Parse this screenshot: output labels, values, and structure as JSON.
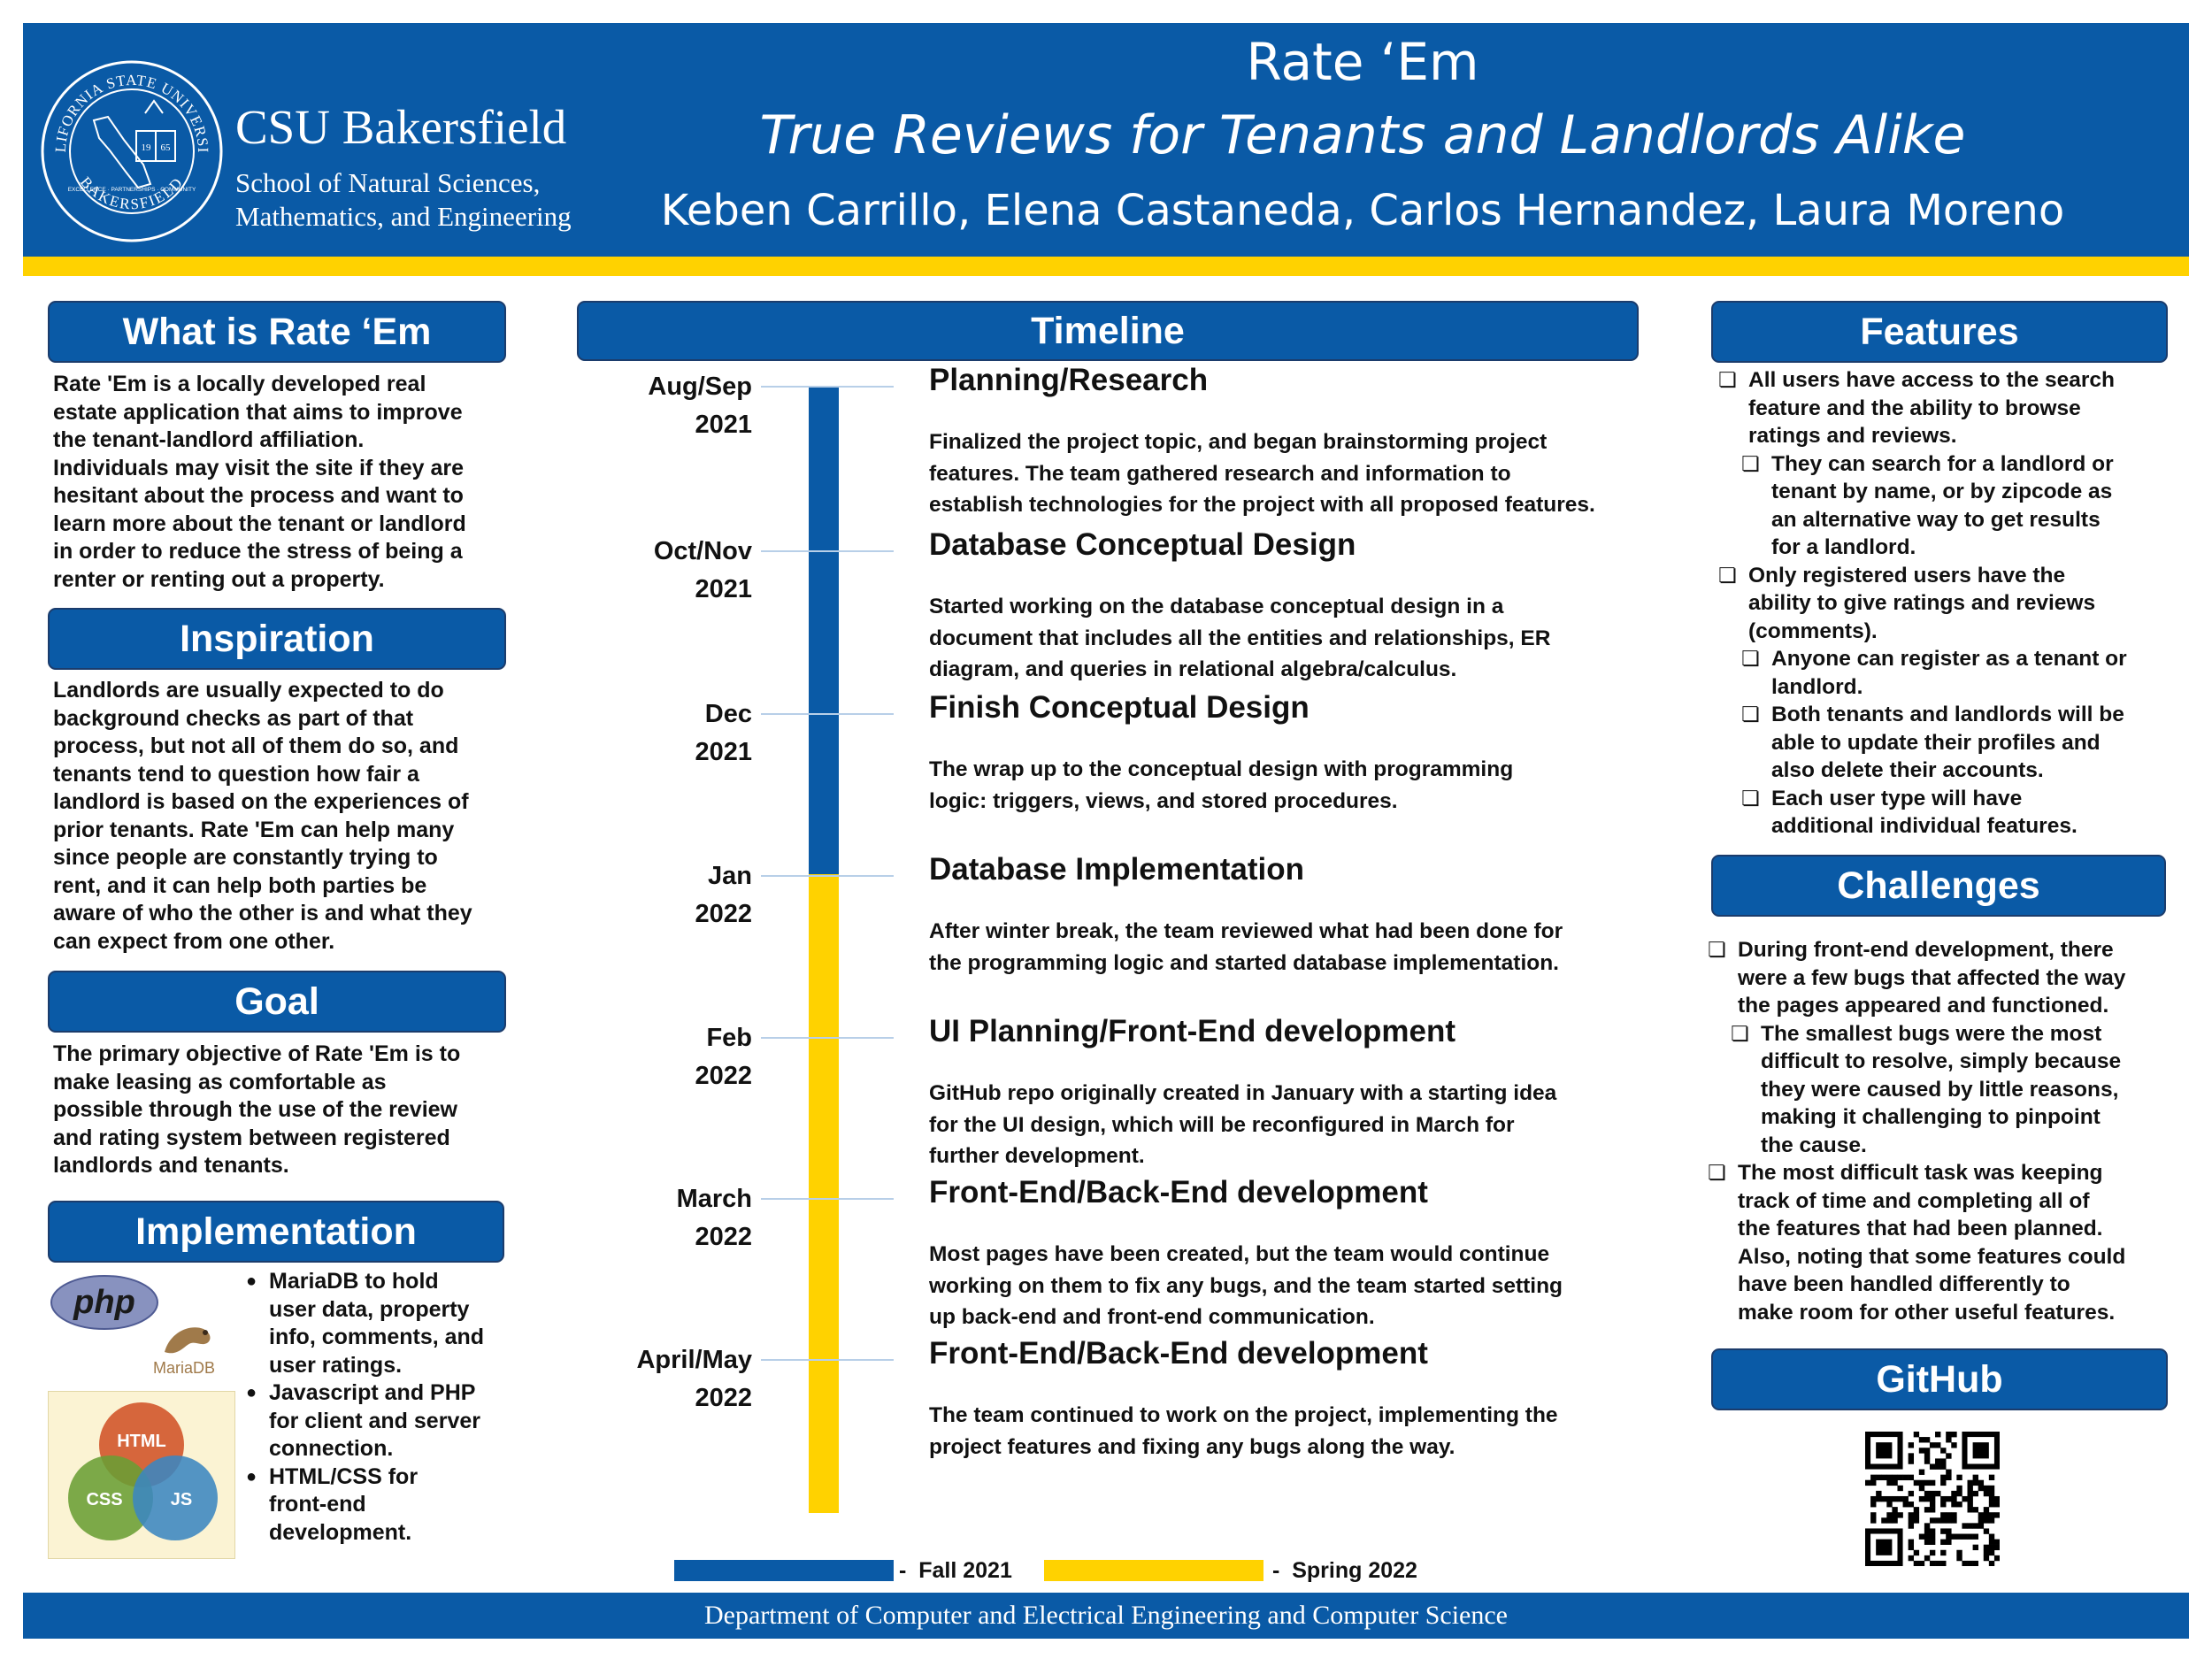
{
  "header": {
    "university": "CSU Bakersfield",
    "school_line1": "School of Natural Sciences,",
    "school_line2": "Mathematics, and Engineering",
    "title": "Rate ‘Em",
    "subtitle": "True Reviews for Tenants and Landlords Alike",
    "authors": "Keben Carrillo, Elena Castaneda, Carlos Hernandez, Laura Moreno",
    "seal_text_top": "CALIFORNIA STATE UNIVERSITY",
    "seal_text_bottom": "BAKERSFIELD",
    "seal_year_left": "19",
    "seal_year_right": "65",
    "seal_ribbon": "EXCELLENCE · PARTNERSHIPS · COMMUNITY"
  },
  "colors": {
    "blue": "#0a5aa6",
    "gold": "#ffd200"
  },
  "what_is": {
    "heading": "What is Rate ‘Em",
    "lines": [
      "Rate 'Em is a locally developed real",
      "estate application that aims to improve",
      "the tenant-landlord affiliation.",
      "Individuals may visit the site if they are",
      "hesitant about the process and want to",
      "learn more about the tenant or landlord",
      "in order to reduce the stress of being a",
      "renter or renting out a property."
    ]
  },
  "inspiration": {
    "heading": "Inspiration",
    "lines": [
      "Landlords are usually expected to do",
      "background checks as part of that",
      "process, but not all of them do so, and",
      "tenants tend to question how fair a",
      "landlord is based on the experiences of",
      "prior tenants. Rate 'Em can help many",
      "since people are constantly trying to",
      "rent, and it can help both parties be",
      "aware of who the other is and what they",
      "can expect from one other."
    ]
  },
  "goal": {
    "heading": "Goal",
    "lines": [
      "The primary objective of Rate 'Em is to",
      "make leasing as comfortable as",
      "possible through the use of the review",
      "and rating system between registered",
      "landlords and tenants."
    ]
  },
  "implementation": {
    "heading": "Implementation",
    "php_logo": "php",
    "mariadb_logo": "MariaDB",
    "venn": [
      "HTML",
      "CSS",
      "JS"
    ],
    "items": [
      [
        "MariaDB to hold",
        "user data, property",
        "info, comments, and",
        "user ratings."
      ],
      [
        "Javascript and PHP",
        "for client and server",
        "connection."
      ],
      [
        "HTML/CSS for",
        "front-end",
        "development."
      ]
    ]
  },
  "timeline": {
    "heading": "Timeline",
    "entries": [
      {
        "date1": "Aug/Sep",
        "date2": "2021",
        "title": "Planning/Research",
        "lines": [
          "Finalized the project topic, and began brainstorming project",
          "features. The team gathered research and information to",
          "establish technologies for the project with all proposed features."
        ]
      },
      {
        "date1": "Oct/Nov",
        "date2": "2021",
        "title": "Database Conceptual Design",
        "lines": [
          "Started working on the database conceptual design in a",
          "document that includes all the entities and relationships, ER",
          "diagram, and queries in relational algebra/calculus."
        ]
      },
      {
        "date1": "Dec",
        "date2": "2021",
        "title": "Finish Conceptual Design",
        "lines": [
          "The wrap up to the conceptual design with programming",
          "logic: triggers, views, and stored procedures."
        ]
      },
      {
        "date1": "Jan",
        "date2": "2022",
        "title": "Database Implementation",
        "lines": [
          "After winter break, the team reviewed what had been done for",
          "the programming logic and started database implementation."
        ]
      },
      {
        "date1": "Feb",
        "date2": "2022",
        "title": "UI Planning/Front-End development",
        "lines": [
          "GitHub repo originally created in January with a starting idea",
          "for the UI design, which will be reconfigured in March for",
          "further development."
        ]
      },
      {
        "date1": "March",
        "date2": "2022",
        "title": "Front-End/Back-End development",
        "lines": [
          "Most pages have been created, but the team would continue",
          "working on them to fix any bugs, and the team started setting",
          "up back-end and front-end communication."
        ]
      },
      {
        "date1": "April/May",
        "date2": "2022",
        "title": "Front-End/Back-End development",
        "lines": [
          "The team continued to work on the project, implementing the",
          "project features and fixing any bugs along the way."
        ]
      }
    ],
    "legend": [
      {
        "label": "Fall 2021",
        "color": "#0a5aa6"
      },
      {
        "label": "Spring 2022",
        "color": "#ffd200"
      }
    ],
    "legend_dash": "-"
  },
  "features": {
    "heading": "Features",
    "items": [
      {
        "level": 0,
        "lines": [
          "All users have access to the search",
          "feature and the ability to browse",
          "ratings and reviews."
        ]
      },
      {
        "level": 1,
        "lines": [
          "They can search for a landlord or",
          "tenant by name, or by zipcode as",
          "an alternative way to get results",
          "for a landlord."
        ]
      },
      {
        "level": 0,
        "lines": [
          "Only registered users have the",
          "ability to give ratings and reviews",
          "(comments)."
        ]
      },
      {
        "level": 1,
        "lines": [
          "Anyone can register as a tenant or",
          "landlord."
        ]
      },
      {
        "level": 1,
        "lines": [
          "Both tenants and landlords will be",
          "able to update their profiles and",
          "also delete their accounts."
        ]
      },
      {
        "level": 1,
        "lines": [
          "Each user type will have",
          "additional individual features."
        ]
      }
    ]
  },
  "challenges": {
    "heading": "Challenges",
    "items": [
      {
        "level": 0,
        "lines": [
          "During front-end development, there",
          "were a few bugs that affected the way",
          "the pages appeared and functioned."
        ]
      },
      {
        "level": 1,
        "lines": [
          "The smallest bugs were the most",
          "difficult to resolve, simply because",
          "they were caused by little reasons,",
          "making it challenging to pinpoint",
          "the cause."
        ]
      },
      {
        "level": 0,
        "lines": [
          "The most difficult task was keeping",
          "track of time and completing all of",
          "the features that had been planned.",
          "Also, noting that some features could",
          "have been handled differently to",
          "make room for other useful features."
        ]
      }
    ]
  },
  "github": {
    "heading": "GitHub"
  },
  "footer": {
    "text": "Department of Computer and Electrical Engineering and Computer Science"
  }
}
